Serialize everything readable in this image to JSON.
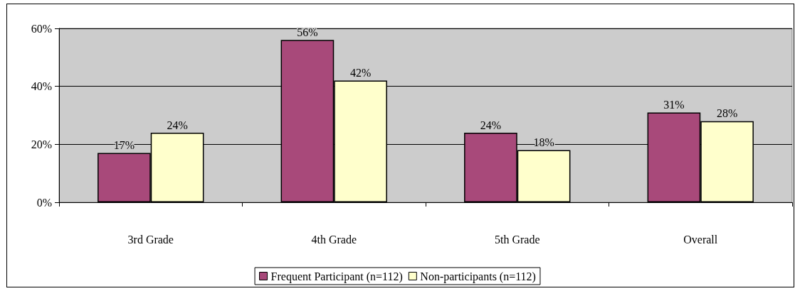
{
  "chart_data": {
    "type": "bar",
    "categories": [
      "3rd Grade",
      "4th Grade",
      "5th Grade",
      "Overall"
    ],
    "series": [
      {
        "name": "Frequent Participant (n=112)",
        "color": "#a8497a",
        "values": [
          17,
          56,
          24,
          31
        ],
        "value_labels": [
          "17%",
          "56%",
          "24%",
          "31%"
        ]
      },
      {
        "name": "Non-participants (n=112)",
        "color": "#ffffcc",
        "values": [
          24,
          42,
          18,
          28
        ],
        "value_labels": [
          "24%",
          "42%",
          "18%",
          "28%"
        ]
      }
    ],
    "ylim": [
      0,
      60
    ],
    "yticks": [
      {
        "value": 0,
        "label": "0%"
      },
      {
        "value": 20,
        "label": "20%"
      },
      {
        "value": 40,
        "label": "40%"
      },
      {
        "value": 60,
        "label": "60%"
      }
    ],
    "grid": "y",
    "legend": "bottom"
  }
}
